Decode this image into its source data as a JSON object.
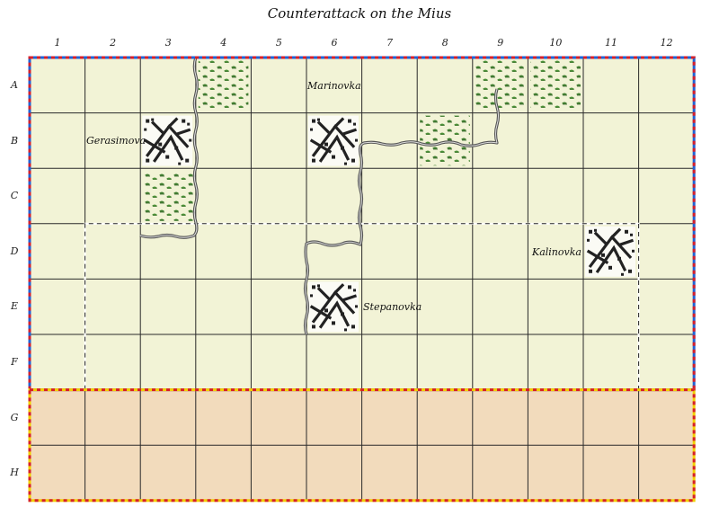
{
  "title": "Counterattack on the Mius",
  "columns": [
    "1",
    "2",
    "3",
    "4",
    "5",
    "6",
    "7",
    "8",
    "9",
    "10",
    "11",
    "12"
  ],
  "rows": [
    "A",
    "B",
    "C",
    "D",
    "E",
    "F",
    "G",
    "H"
  ],
  "colors": {
    "plain": "#f2f3d6",
    "setup_zone": "#f2dbbc",
    "grid_line": "#2a2a2a",
    "outer_border_blue": "#1f63d6",
    "outer_border_red": "#d6202a",
    "setup_border_yellow": "#f0d000",
    "river": "#555555",
    "forest": "#3c7d2c"
  },
  "terrain": {
    "forest": [
      "A4",
      "A9",
      "A10",
      "B8",
      "C3"
    ],
    "town": [
      "B3",
      "B6",
      "D11",
      "E6"
    ]
  },
  "place_names": {
    "marinovka": "Marinovka",
    "gerasimova": "Gerasimova",
    "kalinovka": "Kalinovka",
    "stepanovka": "Stepanovka"
  }
}
